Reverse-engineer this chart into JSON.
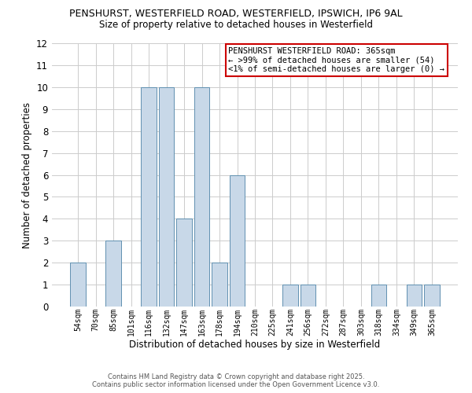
{
  "title_line1": "PENSHURST, WESTERFIELD ROAD, WESTERFIELD, IPSWICH, IP6 9AL",
  "title_line2": "Size of property relative to detached houses in Westerfield",
  "xlabel": "Distribution of detached houses by size in Westerfield",
  "ylabel": "Number of detached properties",
  "categories": [
    "54sqm",
    "70sqm",
    "85sqm",
    "101sqm",
    "116sqm",
    "132sqm",
    "147sqm",
    "163sqm",
    "178sqm",
    "194sqm",
    "210sqm",
    "225sqm",
    "241sqm",
    "256sqm",
    "272sqm",
    "287sqm",
    "303sqm",
    "318sqm",
    "334sqm",
    "349sqm",
    "365sqm"
  ],
  "values": [
    2,
    0,
    3,
    0,
    10,
    10,
    4,
    10,
    2,
    6,
    0,
    0,
    1,
    1,
    0,
    0,
    0,
    1,
    0,
    1,
    1
  ],
  "bar_color": "#c8d8e8",
  "bar_edge_color": "#6090b0",
  "ylim": [
    0,
    12
  ],
  "yticks": [
    0,
    1,
    2,
    3,
    4,
    5,
    6,
    7,
    8,
    9,
    10,
    11,
    12
  ],
  "grid_color": "#cccccc",
  "bg_color": "#ffffff",
  "annotation_box_text_line1": "PENSHURST WESTERFIELD ROAD: 365sqm",
  "annotation_box_text_line2": "← >99% of detached houses are smaller (54)",
  "annotation_box_text_line3": "<1% of semi-detached houses are larger (0) →",
  "annotation_box_edge_color": "#cc0000",
  "footer_line1": "Contains HM Land Registry data © Crown copyright and database right 2025.",
  "footer_line2": "Contains public sector information licensed under the Open Government Licence v3.0."
}
